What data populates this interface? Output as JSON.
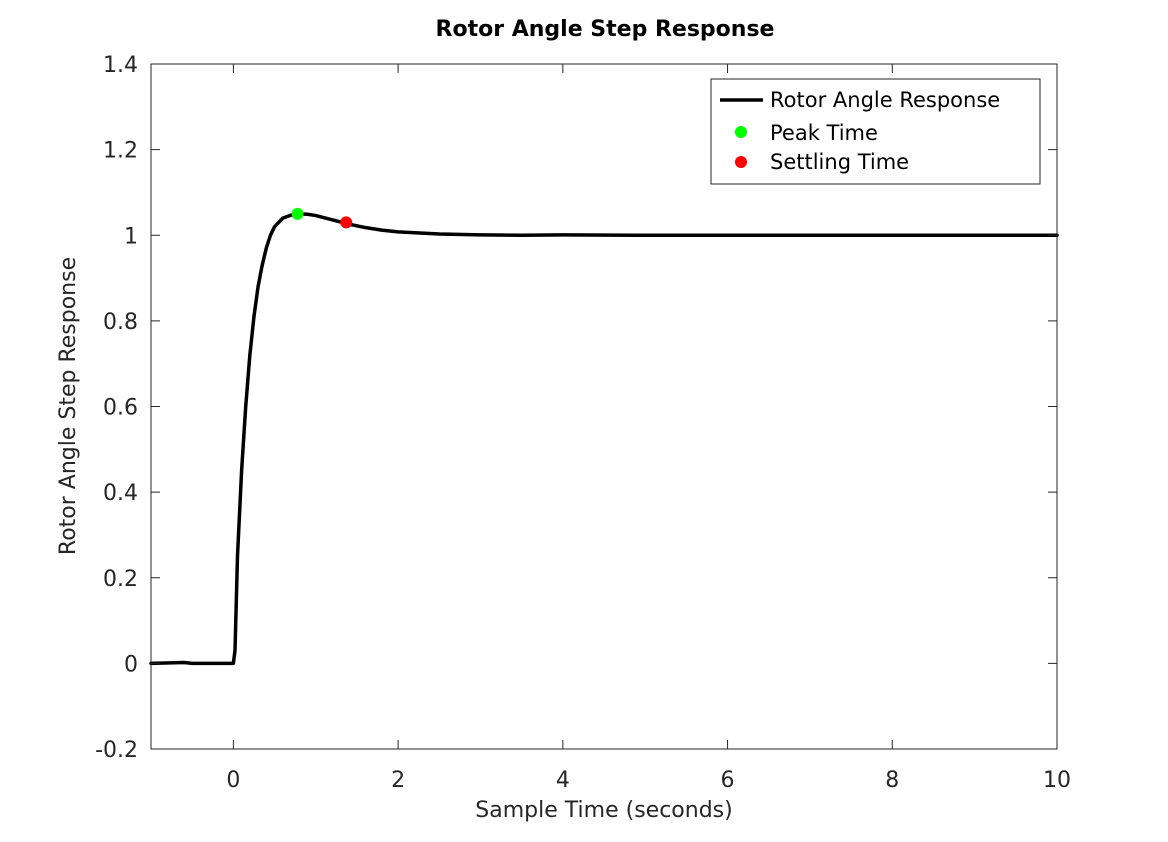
{
  "chart_data": {
    "type": "line",
    "title": "Rotor Angle Step Response",
    "xlabel": "Sample Time (seconds)",
    "ylabel": "Rotor Angle Step Response",
    "xlim": [
      -1,
      10
    ],
    "ylim": [
      -0.2,
      1.4
    ],
    "xticks": [
      0,
      2,
      4,
      6,
      8,
      10
    ],
    "yticks": [
      -0.2,
      0,
      0.2,
      0.4,
      0.6,
      0.8,
      1,
      1.2,
      1.4
    ],
    "grid": false,
    "legend_position": "top-right",
    "series": [
      {
        "name": "Rotor Angle Response",
        "color": "#000000",
        "x": [
          -1,
          -0.6,
          -0.5,
          0,
          0.02,
          0.05,
          0.1,
          0.15,
          0.2,
          0.25,
          0.3,
          0.35,
          0.4,
          0.45,
          0.5,
          0.6,
          0.7,
          0.8,
          0.9,
          1.0,
          1.1,
          1.2,
          1.3,
          1.4,
          1.6,
          1.8,
          2.0,
          2.5,
          3.0,
          3.5,
          4.0,
          5.0,
          6.0,
          7.0,
          8.0,
          9.0,
          10.0
        ],
        "y": [
          0,
          0.002,
          0,
          0,
          0.03,
          0.25,
          0.45,
          0.6,
          0.72,
          0.81,
          0.88,
          0.93,
          0.97,
          1.0,
          1.02,
          1.04,
          1.047,
          1.05,
          1.049,
          1.046,
          1.041,
          1.036,
          1.031,
          1.026,
          1.018,
          1.012,
          1.008,
          1.003,
          1.001,
          1.0,
          1.001,
          1.0,
          1.0,
          1.0,
          1.0,
          1.0,
          1.0
        ]
      }
    ],
    "markers": [
      {
        "name": "Peak Time",
        "color": "#00ff00",
        "x": 0.78,
        "y": 1.05
      },
      {
        "name": "Settling Time",
        "color": "#ff0000",
        "x": 1.37,
        "y": 1.03
      }
    ]
  }
}
